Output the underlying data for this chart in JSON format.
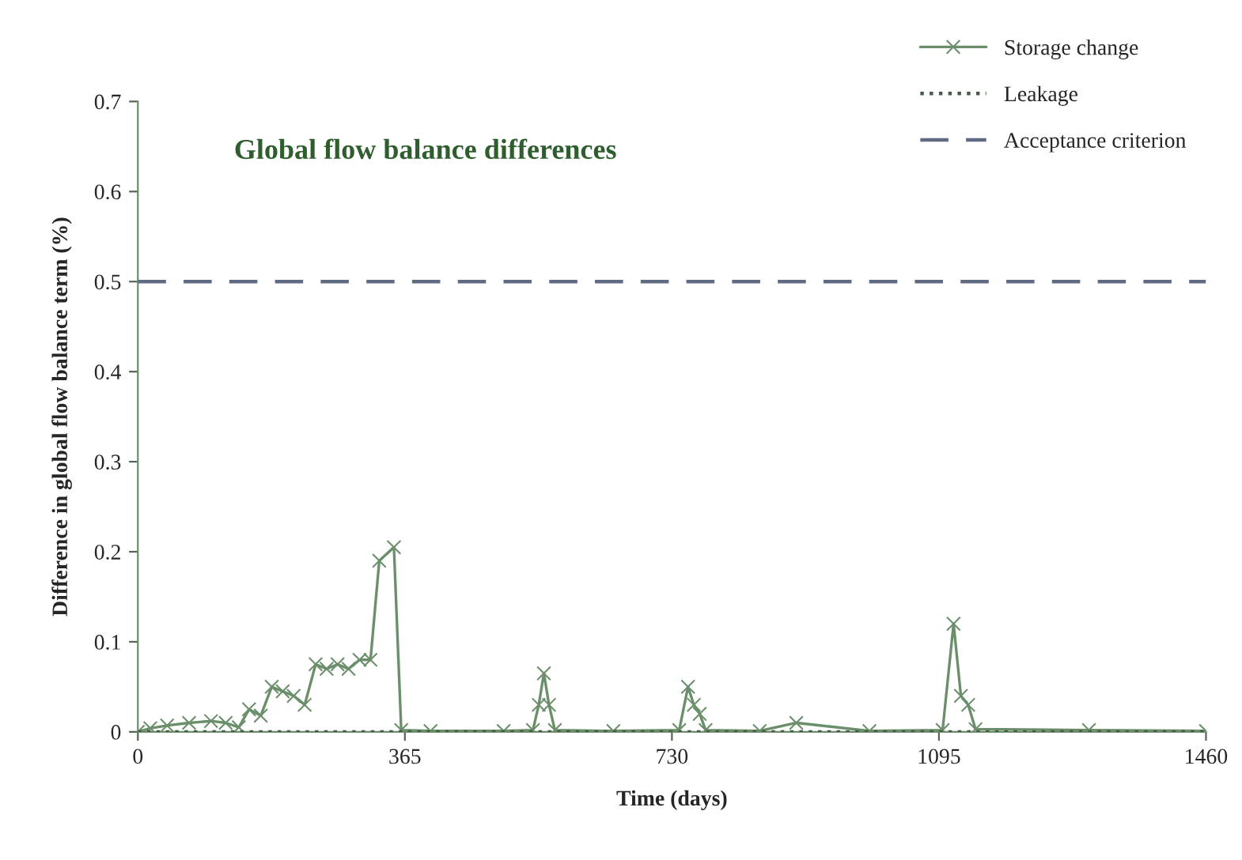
{
  "chart_data": {
    "type": "line",
    "title": "Global flow balance differences",
    "xlabel": "Time (days)",
    "ylabel": "Difference in global flow balance term (%)",
    "xlim": [
      0,
      1460
    ],
    "xticks": [
      0,
      365,
      730,
      1095,
      1460
    ],
    "ylim": [
      0,
      0.7
    ],
    "yticks": [
      0,
      0.1,
      0.2,
      0.3,
      0.4,
      0.5,
      0.6,
      0.7
    ],
    "grid": false,
    "legend": "top right",
    "series": [
      {
        "name": "Storage change",
        "color": "#6b8f6b",
        "marker": "cross",
        "line_style": "solid",
        "x": [
          0,
          17,
          40,
          70,
          100,
          120,
          138,
          152,
          168,
          183,
          198,
          213,
          228,
          243,
          258,
          273,
          288,
          303,
          318,
          330,
          350,
          360,
          400,
          500,
          540,
          548,
          555,
          562,
          570,
          650,
          740,
          752,
          760,
          768,
          776,
          850,
          900,
          1000,
          1100,
          1115,
          1125,
          1135,
          1145,
          1300,
          1460
        ],
        "values": [
          0,
          0.004,
          0.007,
          0.01,
          0.012,
          0.01,
          0.005,
          0.025,
          0.018,
          0.05,
          0.045,
          0.04,
          0.03,
          0.075,
          0.07,
          0.075,
          0.07,
          0.08,
          0.08,
          0.19,
          0.205,
          0.002,
          0.001,
          0.001,
          0.002,
          0.03,
          0.065,
          0.03,
          0.002,
          0.001,
          0.002,
          0.05,
          0.03,
          0.02,
          0.002,
          0.001,
          0.01,
          0.001,
          0.002,
          0.12,
          0.04,
          0.03,
          0.003,
          0.002,
          0.001
        ]
      },
      {
        "name": "Leakage",
        "color": "#4a5a4a",
        "marker": "none",
        "line_style": "dotted",
        "x": [
          0,
          1460
        ],
        "values": [
          0,
          0
        ]
      },
      {
        "name": "Acceptance criterion",
        "color": "#5f6b85",
        "marker": "none",
        "line_style": "dashed",
        "x": [
          0,
          1460
        ],
        "values": [
          0.5,
          0.5
        ]
      }
    ]
  }
}
